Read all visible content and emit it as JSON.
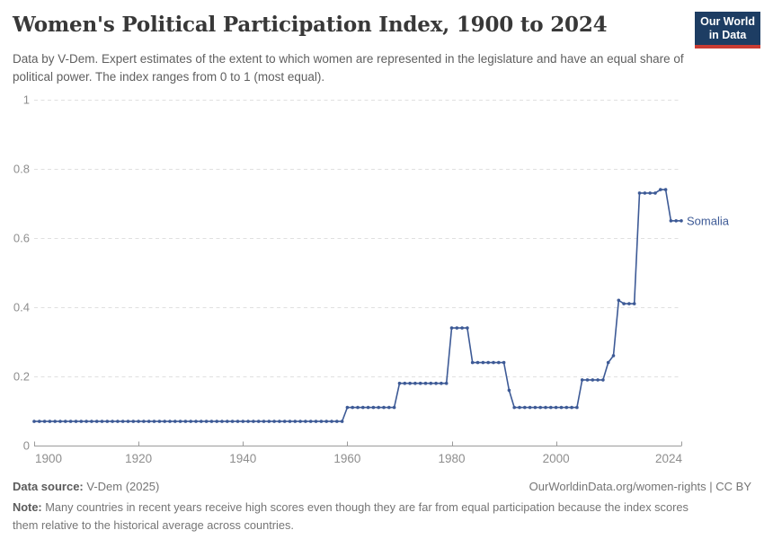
{
  "header": {
    "title": "Women's Political Participation Index, 1900 to 2024",
    "subtitle": "Data by V-Dem. Expert estimates of the extent to which women are represented in the legislature and have an equal share of political power. The index ranges from 0 to 1 (most equal).",
    "logo": {
      "line1": "Our World",
      "line2": "in Data",
      "bg_color": "#1d3d63",
      "stripe_color": "#c93c33"
    }
  },
  "chart_data": {
    "type": "line",
    "title": "Women's Political Participation Index, 1900 to 2024",
    "xlabel": "",
    "ylabel": "",
    "xlim": [
      1900,
      2024
    ],
    "ylim": [
      0,
      1
    ],
    "xticks": [
      1900,
      1920,
      1940,
      1960,
      1980,
      2000,
      2024
    ],
    "yticks": [
      0,
      0.2,
      0.4,
      0.6,
      0.8,
      1
    ],
    "grid": "dashed horizontal",
    "legend_position": "end-of-line label",
    "line_color": "#3d5a96",
    "axis_text_color": "#8e8e8e",
    "series": [
      {
        "name": "Somalia",
        "color": "#3d5a96",
        "segments": [
          {
            "from": 1900,
            "to": 1959,
            "value": 0.07
          },
          {
            "from": 1960,
            "to": 1969,
            "value": 0.11
          },
          {
            "from": 1970,
            "to": 1979,
            "value": 0.18
          },
          {
            "from": 1980,
            "to": 1983,
            "value": 0.34
          },
          {
            "from": 1984,
            "to": 1990,
            "value": 0.24
          },
          {
            "from": 1991,
            "to": 1991,
            "value": 0.16
          },
          {
            "from": 1992,
            "to": 2004,
            "value": 0.11
          },
          {
            "from": 2005,
            "to": 2009,
            "value": 0.19
          },
          {
            "from": 2010,
            "to": 2010,
            "value": 0.24
          },
          {
            "from": 2011,
            "to": 2011,
            "value": 0.26
          },
          {
            "from": 2012,
            "to": 2012,
            "value": 0.42
          },
          {
            "from": 2013,
            "to": 2015,
            "value": 0.41
          },
          {
            "from": 2016,
            "to": 2019,
            "value": 0.73
          },
          {
            "from": 2020,
            "to": 2021,
            "value": 0.74
          },
          {
            "from": 2022,
            "to": 2024,
            "value": 0.65
          }
        ]
      }
    ],
    "end_label": "Somalia"
  },
  "footer": {
    "source_label": "Data source:",
    "source_value": " V-Dem (2025)",
    "link": "OurWorldinData.org/women-rights | CC BY",
    "note_label": "Note:",
    "note_value": " Many countries in recent years receive high scores even though they are far from equal participation because the index scores them relative to the historical average across countries."
  }
}
